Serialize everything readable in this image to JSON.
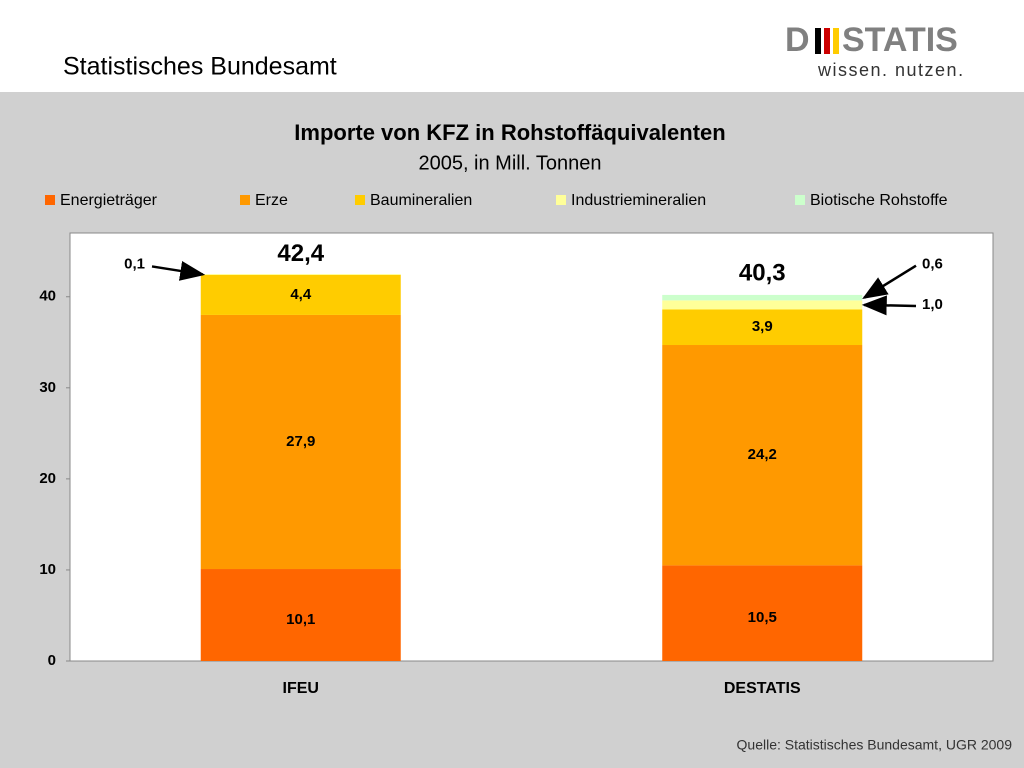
{
  "header": {
    "title": "Statistisches Bundesamt",
    "logo_left": "D",
    "logo_right": "STATIS",
    "tagline": "wissen. nutzen."
  },
  "chart_data": {
    "type": "stacked_bar",
    "title": "Importe von KFZ in Rohstoffäquivalenten",
    "subtitle": "2005, in Mill. Tonnen",
    "categories": [
      "IFEU",
      "DESTATIS"
    ],
    "series": [
      {
        "name": "Energieträger",
        "color": "#ff6600",
        "values": [
          10.1,
          10.5
        ],
        "value_labels": [
          "10,1",
          "10,5"
        ]
      },
      {
        "name": "Erze",
        "color": "#ff9900",
        "values": [
          27.9,
          24.2
        ],
        "value_labels": [
          "27,9",
          "24,2"
        ]
      },
      {
        "name": "Baumineralien",
        "color": "#ffcc00",
        "values": [
          4.4,
          3.9
        ],
        "value_labels": [
          "4,4",
          "3,9"
        ]
      },
      {
        "name": "Industriemineralien",
        "color": "#ffff99",
        "values": [
          0.1,
          1.0
        ],
        "value_labels": [
          "0,1",
          "1,0"
        ]
      },
      {
        "name": "Biotische Rohstoffe",
        "color": "#ccffcc",
        "values": [
          null,
          0.6
        ],
        "value_labels": [
          null,
          "0,6"
        ]
      }
    ],
    "totals": [
      42.4,
      40.3
    ],
    "total_labels": [
      "42,4",
      "40,3"
    ],
    "ylim": [
      0,
      47
    ],
    "yticks": [
      0,
      10,
      20,
      30,
      40
    ],
    "source": "Quelle: Statistisches Bundesamt, UGR 2009"
  }
}
